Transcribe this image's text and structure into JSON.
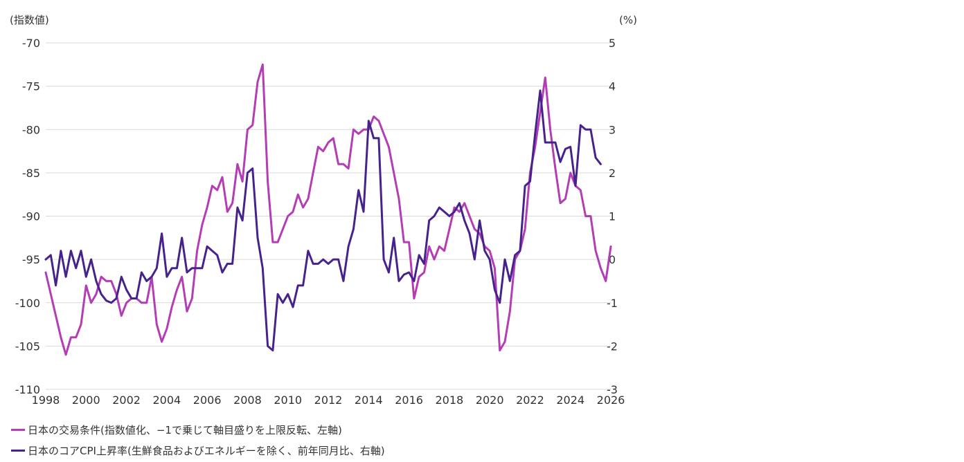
{
  "chart_data": {
    "type": "line",
    "left_axis_unit": "(指数値)",
    "right_axis_unit": "(%)",
    "left_ylim": [
      -110,
      -70
    ],
    "right_ylim": [
      -3,
      5
    ],
    "left_ticks": [
      "-70",
      "-75",
      "-80",
      "-85",
      "-90",
      "-95",
      "-100",
      "-105",
      "-110"
    ],
    "right_ticks": [
      "5",
      "4",
      "3",
      "2",
      "1",
      "0",
      "-1",
      "-2",
      "-3"
    ],
    "xlim": [
      1998,
      2026
    ],
    "x_ticks": [
      "1998",
      "2000",
      "2002",
      "2004",
      "2006",
      "2008",
      "2010",
      "2012",
      "2014",
      "2016",
      "2018",
      "2020",
      "2022",
      "2024",
      "2026"
    ],
    "series": [
      {
        "name": "日本の交易条件(指数値化、−1で乗じて軸目盛りを上限反転、左軸)",
        "axis": "left",
        "color": "#b43cb4",
        "points": [
          [
            1998.0,
            -96.5
          ],
          [
            1998.25,
            -99
          ],
          [
            1998.5,
            -101.5
          ],
          [
            1998.75,
            -104
          ],
          [
            1999.0,
            -106
          ],
          [
            1999.25,
            -104
          ],
          [
            1999.5,
            -104
          ],
          [
            1999.75,
            -102.5
          ],
          [
            2000.0,
            -98
          ],
          [
            2000.25,
            -100
          ],
          [
            2000.5,
            -99
          ],
          [
            2000.75,
            -97
          ],
          [
            2001.0,
            -97.5
          ],
          [
            2001.25,
            -97.5
          ],
          [
            2001.5,
            -99
          ],
          [
            2001.75,
            -101.5
          ],
          [
            2002.0,
            -100
          ],
          [
            2002.25,
            -99.5
          ],
          [
            2002.5,
            -99.5
          ],
          [
            2002.75,
            -100
          ],
          [
            2003.0,
            -100
          ],
          [
            2003.25,
            -97
          ],
          [
            2003.5,
            -102.5
          ],
          [
            2003.75,
            -104.5
          ],
          [
            2004.0,
            -103
          ],
          [
            2004.25,
            -100.5
          ],
          [
            2004.5,
            -98.5
          ],
          [
            2004.75,
            -97
          ],
          [
            2005.0,
            -101
          ],
          [
            2005.25,
            -99.5
          ],
          [
            2005.5,
            -94
          ],
          [
            2005.75,
            -91
          ],
          [
            2006.0,
            -89
          ],
          [
            2006.25,
            -86.5
          ],
          [
            2006.5,
            -87
          ],
          [
            2006.75,
            -85.5
          ],
          [
            2007.0,
            -89.5
          ],
          [
            2007.25,
            -88.5
          ],
          [
            2007.5,
            -84
          ],
          [
            2007.75,
            -86
          ],
          [
            2008.0,
            -80
          ],
          [
            2008.25,
            -79.5
          ],
          [
            2008.5,
            -74.5
          ],
          [
            2008.75,
            -72.5
          ],
          [
            2009.0,
            -86
          ],
          [
            2009.25,
            -93
          ],
          [
            2009.5,
            -93
          ],
          [
            2009.75,
            -91.5
          ],
          [
            2010.0,
            -90
          ],
          [
            2010.25,
            -89.5
          ],
          [
            2010.5,
            -87.5
          ],
          [
            2010.75,
            -89
          ],
          [
            2011.0,
            -88
          ],
          [
            2011.25,
            -85
          ],
          [
            2011.5,
            -82
          ],
          [
            2011.75,
            -82.5
          ],
          [
            2012.0,
            -81.5
          ],
          [
            2012.25,
            -81
          ],
          [
            2012.5,
            -84
          ],
          [
            2012.75,
            -84
          ],
          [
            2013.0,
            -84.5
          ],
          [
            2013.25,
            -80
          ],
          [
            2013.5,
            -80.5
          ],
          [
            2013.75,
            -80
          ],
          [
            2014.0,
            -80
          ],
          [
            2014.25,
            -78.5
          ],
          [
            2014.5,
            -79
          ],
          [
            2014.75,
            -80.5
          ],
          [
            2015.0,
            -82
          ],
          [
            2015.25,
            -85
          ],
          [
            2015.5,
            -88
          ],
          [
            2015.75,
            -93
          ],
          [
            2016.0,
            -93
          ],
          [
            2016.25,
            -99.5
          ],
          [
            2016.5,
            -97
          ],
          [
            2016.75,
            -96.5
          ],
          [
            2017.0,
            -93.5
          ],
          [
            2017.25,
            -95
          ],
          [
            2017.5,
            -93.5
          ],
          [
            2017.75,
            -94
          ],
          [
            2018.0,
            -91.5
          ],
          [
            2018.25,
            -89
          ],
          [
            2018.5,
            -89.5
          ],
          [
            2018.75,
            -88.5
          ],
          [
            2019.0,
            -90
          ],
          [
            2019.25,
            -91.5
          ],
          [
            2019.5,
            -92
          ],
          [
            2019.75,
            -93.5
          ],
          [
            2020.0,
            -94
          ],
          [
            2020.25,
            -96
          ],
          [
            2020.5,
            -105.5
          ],
          [
            2020.75,
            -104.5
          ],
          [
            2021.0,
            -101
          ],
          [
            2021.25,
            -95
          ],
          [
            2021.5,
            -94
          ],
          [
            2021.75,
            -91.5
          ],
          [
            2022.0,
            -85
          ],
          [
            2022.25,
            -82
          ],
          [
            2022.5,
            -78
          ],
          [
            2022.75,
            -74
          ],
          [
            2023.0,
            -80
          ],
          [
            2023.25,
            -84.5
          ],
          [
            2023.5,
            -88.5
          ],
          [
            2023.75,
            -88
          ],
          [
            2024.0,
            -85
          ],
          [
            2024.25,
            -86.5
          ],
          [
            2024.5,
            -87
          ],
          [
            2024.75,
            -90
          ],
          [
            2025.0,
            -90
          ],
          [
            2025.25,
            -94
          ],
          [
            2025.5,
            -96
          ],
          [
            2025.75,
            -97.5
          ],
          [
            2026.0,
            -93.5
          ]
        ]
      },
      {
        "name": "日本のコアCPI上昇率(生鮮食品およびエネルギーを除く、前年同月比、右軸)",
        "axis": "right",
        "color": "#46238c",
        "points": [
          [
            1998.0,
            0
          ],
          [
            1998.25,
            0.1
          ],
          [
            1998.5,
            -0.6
          ],
          [
            1998.75,
            0.2
          ],
          [
            1999.0,
            -0.4
          ],
          [
            1999.25,
            0.2
          ],
          [
            1999.5,
            -0.2
          ],
          [
            1999.75,
            0.2
          ],
          [
            2000.0,
            -0.4
          ],
          [
            2000.25,
            0
          ],
          [
            2000.5,
            -0.5
          ],
          [
            2000.75,
            -0.8
          ],
          [
            2001.0,
            -0.95
          ],
          [
            2001.25,
            -1
          ],
          [
            2001.5,
            -0.9
          ],
          [
            2001.75,
            -0.4
          ],
          [
            2002.0,
            -0.7
          ],
          [
            2002.25,
            -0.9
          ],
          [
            2002.5,
            -0.9
          ],
          [
            2002.75,
            -0.3
          ],
          [
            2003.0,
            -0.5
          ],
          [
            2003.25,
            -0.4
          ],
          [
            2003.5,
            -0.2
          ],
          [
            2003.75,
            0.6
          ],
          [
            2004.0,
            -0.4
          ],
          [
            2004.25,
            -0.2
          ],
          [
            2004.5,
            -0.2
          ],
          [
            2004.75,
            0.5
          ],
          [
            2005.0,
            -0.3
          ],
          [
            2005.25,
            -0.2
          ],
          [
            2005.5,
            -0.2
          ],
          [
            2005.75,
            -0.2
          ],
          [
            2006.0,
            0.3
          ],
          [
            2006.25,
            0.2
          ],
          [
            2006.5,
            0.1
          ],
          [
            2006.75,
            -0.3
          ],
          [
            2007.0,
            -0.1
          ],
          [
            2007.25,
            -0.1
          ],
          [
            2007.5,
            1.2
          ],
          [
            2007.75,
            0.9
          ],
          [
            2008.0,
            2
          ],
          [
            2008.25,
            2.1
          ],
          [
            2008.5,
            0.5
          ],
          [
            2008.75,
            -0.2
          ],
          [
            2009.0,
            -2
          ],
          [
            2009.25,
            -2.1
          ],
          [
            2009.5,
            -0.8
          ],
          [
            2009.75,
            -1
          ],
          [
            2010.0,
            -0.8
          ],
          [
            2010.25,
            -1.1
          ],
          [
            2010.5,
            -0.6
          ],
          [
            2010.75,
            -0.6
          ],
          [
            2011.0,
            0.2
          ],
          [
            2011.25,
            -0.1
          ],
          [
            2011.5,
            -0.1
          ],
          [
            2011.75,
            0
          ],
          [
            2012.0,
            -0.1
          ],
          [
            2012.25,
            0
          ],
          [
            2012.5,
            0
          ],
          [
            2012.75,
            -0.5
          ],
          [
            2013.0,
            0.3
          ],
          [
            2013.25,
            0.7
          ],
          [
            2013.5,
            1.6
          ],
          [
            2013.75,
            1.1
          ],
          [
            2014.0,
            3.2
          ],
          [
            2014.25,
            2.8
          ],
          [
            2014.5,
            2.8
          ],
          [
            2014.75,
            0
          ],
          [
            2015.0,
            -0.3
          ],
          [
            2015.25,
            0.5
          ],
          [
            2015.5,
            -0.5
          ],
          [
            2015.75,
            -0.35
          ],
          [
            2016.0,
            -0.3
          ],
          [
            2016.25,
            -0.5
          ],
          [
            2016.5,
            0.1
          ],
          [
            2016.75,
            -0.1
          ],
          [
            2017.0,
            0.9
          ],
          [
            2017.25,
            1
          ],
          [
            2017.5,
            1.2
          ],
          [
            2017.75,
            1.1
          ],
          [
            2018.0,
            1
          ],
          [
            2018.25,
            1.1
          ],
          [
            2018.5,
            1.3
          ],
          [
            2018.75,
            0.9
          ],
          [
            2019.0,
            0.6
          ],
          [
            2019.25,
            0
          ],
          [
            2019.5,
            0.9
          ],
          [
            2019.75,
            0.2
          ],
          [
            2020.0,
            0
          ],
          [
            2020.25,
            -0.7
          ],
          [
            2020.5,
            -1
          ],
          [
            2020.75,
            0
          ],
          [
            2021.0,
            -0.5
          ],
          [
            2021.25,
            0.1
          ],
          [
            2021.5,
            0.2
          ],
          [
            2021.75,
            1.7
          ],
          [
            2022.0,
            1.8
          ],
          [
            2022.25,
            2.9
          ],
          [
            2022.5,
            3.9
          ],
          [
            2022.75,
            2.7
          ],
          [
            2023.0,
            2.7
          ],
          [
            2023.25,
            2.7
          ],
          [
            2023.5,
            2.25
          ],
          [
            2023.75,
            2.55
          ],
          [
            2024.0,
            2.6
          ],
          [
            2024.25,
            1.7
          ],
          [
            2024.5,
            3.1
          ],
          [
            2024.75,
            3.0
          ],
          [
            2025.0,
            3.0
          ],
          [
            2025.25,
            2.35
          ],
          [
            2025.5,
            2.2
          ]
        ]
      }
    ]
  },
  "legend": [
    {
      "label": "日本の交易条件(指数値化、−1で乗じて軸目盛りを上限反転、左軸)",
      "color": "#b43cb4"
    },
    {
      "label": "日本のコアCPI上昇率(生鮮食品およびエネルギーを除く、前年同月比、右軸)",
      "color": "#46238c"
    }
  ]
}
